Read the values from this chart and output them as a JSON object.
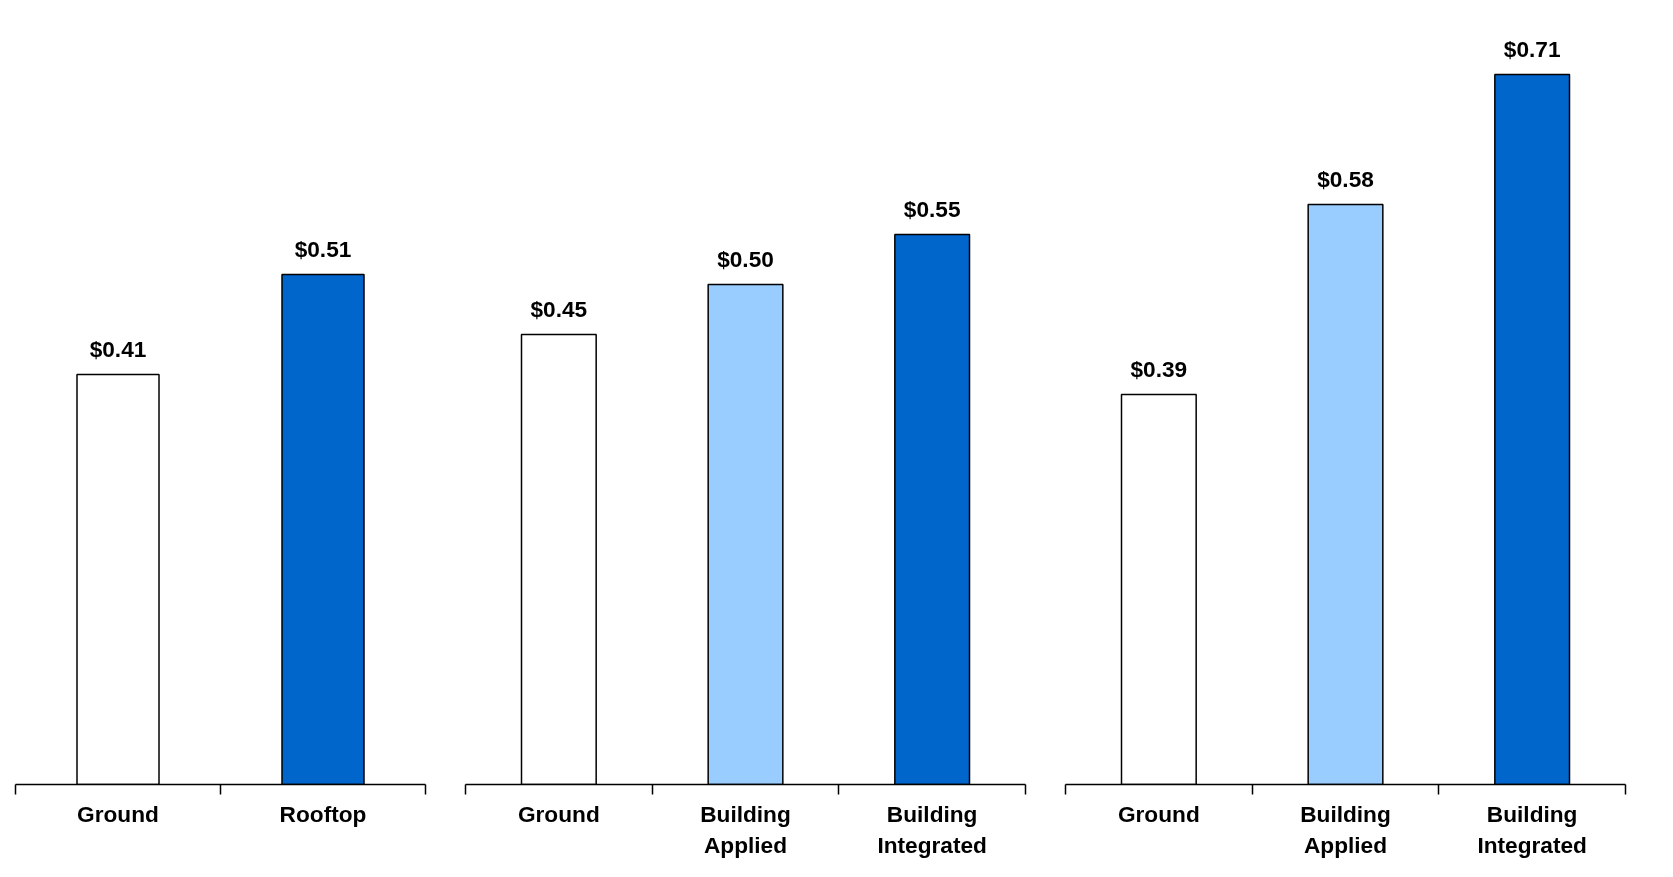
{
  "chart_data": [
    {
      "type": "bar",
      "categories": [
        "Ground",
        "Rooftop"
      ],
      "values": [
        0.41,
        0.51
      ],
      "colors": [
        "#ffffff",
        "#0066cc"
      ],
      "value_labels": [
        "$0.41",
        "$0.51"
      ],
      "tick_labels": "x",
      "grid": false
    },
    {
      "type": "bar",
      "categories": [
        "Ground",
        "Building Applied",
        "Building Integrated"
      ],
      "values": [
        0.45,
        0.5,
        0.55
      ],
      "colors": [
        "#ffffff",
        "#99ccff",
        "#0066cc"
      ],
      "value_labels": [
        "$0.45",
        "$0.50",
        "$0.55"
      ],
      "tick_labels": "x",
      "grid": false
    },
    {
      "type": "bar",
      "categories": [
        "Ground",
        "Building Applied",
        "Building Integrated"
      ],
      "values": [
        0.39,
        0.58,
        0.71
      ],
      "colors": [
        "#ffffff",
        "#99ccff",
        "#0066cc"
      ],
      "value_labels": [
        "$0.39",
        "$0.58",
        "$0.71"
      ],
      "tick_labels": "x",
      "grid": false
    }
  ]
}
